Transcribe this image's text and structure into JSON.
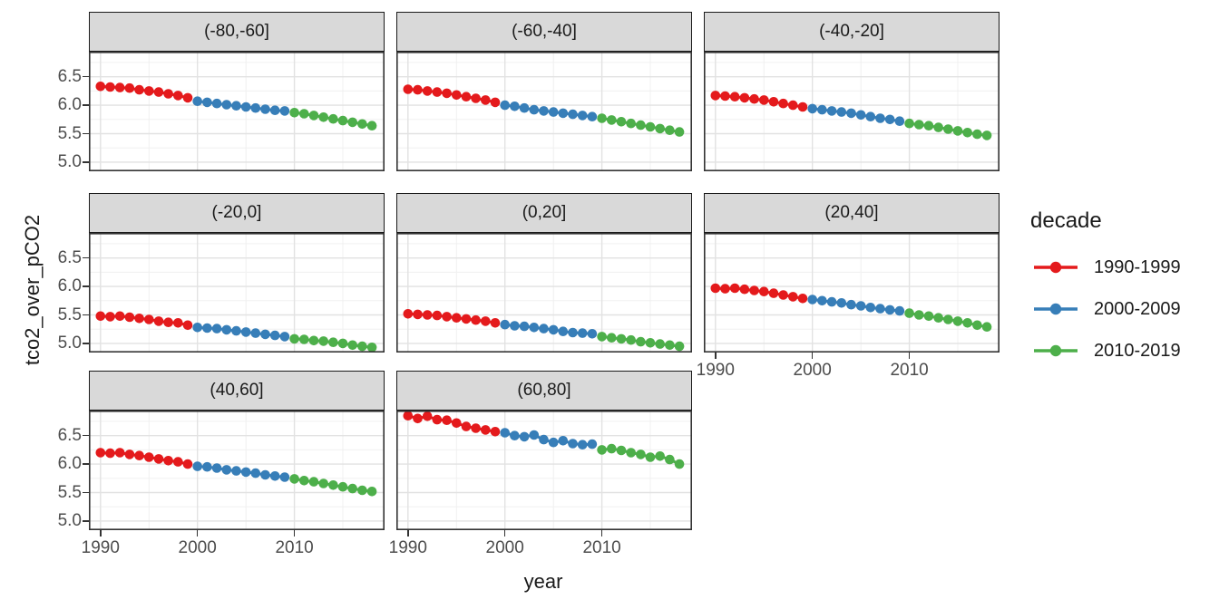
{
  "chart_data": {
    "type": "scatter",
    "title": "",
    "xlabel": "year",
    "ylabel": "tco2_over_pCO2",
    "legend_title": "decade",
    "legend_position": "right",
    "grid": true,
    "xlim": [
      1988.8,
      2019.3
    ],
    "ylim": [
      4.84,
      6.94
    ],
    "x_major_ticks": [
      1990,
      2000,
      2010
    ],
    "x_minor_ticks": [
      1995,
      2005,
      2015
    ],
    "y_major_ticks": [
      6.5,
      6.0,
      5.5,
      5.0
    ],
    "y_minor_ticks": [
      6.75,
      6.25,
      5.75,
      5.25
    ],
    "x_tick_labels": [
      "1990",
      "2000",
      "2010"
    ],
    "y_tick_labels": [
      "6.5",
      "6.0",
      "5.5",
      "5.0"
    ],
    "x": [
      1990,
      1991,
      1992,
      1993,
      1994,
      1995,
      1996,
      1997,
      1998,
      1999,
      2000,
      2001,
      2002,
      2003,
      2004,
      2005,
      2006,
      2007,
      2008,
      2009,
      2010,
      2011,
      2012,
      2013,
      2014,
      2015,
      2016,
      2017,
      2018
    ],
    "series": [
      {
        "name": "1990-1999",
        "color": "#E41A1C",
        "year_start": 1990,
        "year_end": 1999
      },
      {
        "name": "2000-2009",
        "color": "#377EB8",
        "year_start": 2000,
        "year_end": 2009
      },
      {
        "name": "2010-2019",
        "color": "#4DAF4A",
        "year_start": 2010,
        "year_end": 2019
      }
    ],
    "facets": [
      {
        "label": "(-80,-60]",
        "values": [
          6.33,
          6.32,
          6.31,
          6.3,
          6.27,
          6.25,
          6.23,
          6.2,
          6.17,
          6.13,
          6.07,
          6.05,
          6.03,
          6.01,
          5.99,
          5.97,
          5.95,
          5.93,
          5.91,
          5.9,
          5.87,
          5.85,
          5.82,
          5.79,
          5.76,
          5.73,
          5.7,
          5.67,
          5.64
        ]
      },
      {
        "label": "(-60,-40]",
        "values": [
          6.28,
          6.27,
          6.25,
          6.23,
          6.21,
          6.18,
          6.15,
          6.12,
          6.09,
          6.05,
          6.0,
          5.98,
          5.95,
          5.92,
          5.9,
          5.88,
          5.86,
          5.84,
          5.82,
          5.8,
          5.77,
          5.74,
          5.71,
          5.68,
          5.65,
          5.62,
          5.59,
          5.56,
          5.53
        ]
      },
      {
        "label": "(-40,-20]",
        "values": [
          6.17,
          6.16,
          6.15,
          6.13,
          6.11,
          6.09,
          6.06,
          6.03,
          6.0,
          5.97,
          5.94,
          5.92,
          5.9,
          5.88,
          5.86,
          5.83,
          5.8,
          5.77,
          5.75,
          5.72,
          5.68,
          5.66,
          5.64,
          5.61,
          5.58,
          5.55,
          5.52,
          5.49,
          5.47
        ]
      },
      {
        "label": "(-20,0]",
        "values": [
          5.48,
          5.47,
          5.48,
          5.46,
          5.44,
          5.42,
          5.39,
          5.37,
          5.36,
          5.32,
          5.28,
          5.27,
          5.26,
          5.24,
          5.22,
          5.2,
          5.18,
          5.16,
          5.14,
          5.12,
          5.08,
          5.07,
          5.05,
          5.04,
          5.02,
          5.0,
          4.97,
          4.95,
          4.93
        ]
      },
      {
        "label": "(0,20]",
        "values": [
          5.52,
          5.51,
          5.5,
          5.49,
          5.47,
          5.45,
          5.43,
          5.41,
          5.39,
          5.36,
          5.33,
          5.31,
          5.3,
          5.28,
          5.26,
          5.24,
          5.21,
          5.19,
          5.18,
          5.17,
          5.12,
          5.1,
          5.08,
          5.06,
          5.03,
          5.01,
          4.99,
          4.97,
          4.95
        ]
      },
      {
        "label": "(20,40]",
        "values": [
          5.97,
          5.96,
          5.97,
          5.95,
          5.93,
          5.91,
          5.88,
          5.85,
          5.82,
          5.79,
          5.77,
          5.75,
          5.73,
          5.71,
          5.68,
          5.66,
          5.63,
          5.61,
          5.59,
          5.57,
          5.53,
          5.5,
          5.48,
          5.45,
          5.42,
          5.39,
          5.36,
          5.32,
          5.29
        ]
      },
      {
        "label": "(40,60]",
        "values": [
          6.2,
          6.19,
          6.2,
          6.17,
          6.15,
          6.12,
          6.09,
          6.06,
          6.04,
          6.0,
          5.96,
          5.95,
          5.93,
          5.9,
          5.88,
          5.86,
          5.84,
          5.81,
          5.79,
          5.77,
          5.74,
          5.71,
          5.69,
          5.66,
          5.63,
          5.6,
          5.57,
          5.54,
          5.52
        ]
      },
      {
        "label": "(60,80]",
        "values": [
          6.85,
          6.8,
          6.84,
          6.78,
          6.77,
          6.72,
          6.66,
          6.63,
          6.6,
          6.57,
          6.55,
          6.5,
          6.48,
          6.51,
          6.43,
          6.38,
          6.41,
          6.36,
          6.34,
          6.35,
          6.25,
          6.27,
          6.24,
          6.2,
          6.17,
          6.12,
          6.14,
          6.08,
          6.0
        ]
      }
    ]
  },
  "style_colors": {
    "strip_background": "#d9d9d9",
    "panel_border": "#333333",
    "grid_major": "#e2e2e2",
    "grid_minor": "#f0f0f0",
    "tick_text": "#4d4d4d",
    "text": "#1a1a1a"
  }
}
